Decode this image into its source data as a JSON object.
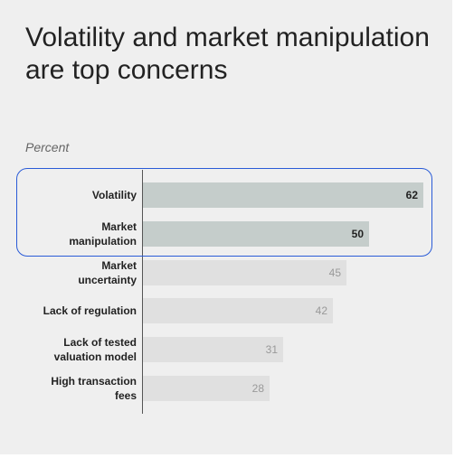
{
  "chart_data": {
    "type": "bar",
    "orientation": "horizontal",
    "title": "Volatility and market manipulation are top concerns",
    "subtitle": "Percent",
    "categories": [
      "Volatility",
      "Market\nmanipulation",
      "Market\nuncertainty",
      "Lack of regulation",
      "Lack of tested\nvaluation model",
      "High transaction\nfees"
    ],
    "values": [
      62,
      50,
      45,
      42,
      31,
      28
    ],
    "highlighted": [
      true,
      true,
      false,
      false,
      false,
      false
    ],
    "bar_color": "#e0e0e0",
    "highlight_bar_color": "#c5cdcb",
    "value_label_color": "#999999",
    "highlight_value_label_color": "#222222",
    "highlight_box_color": "#2a5bd7",
    "xlim": [
      0,
      62
    ]
  }
}
